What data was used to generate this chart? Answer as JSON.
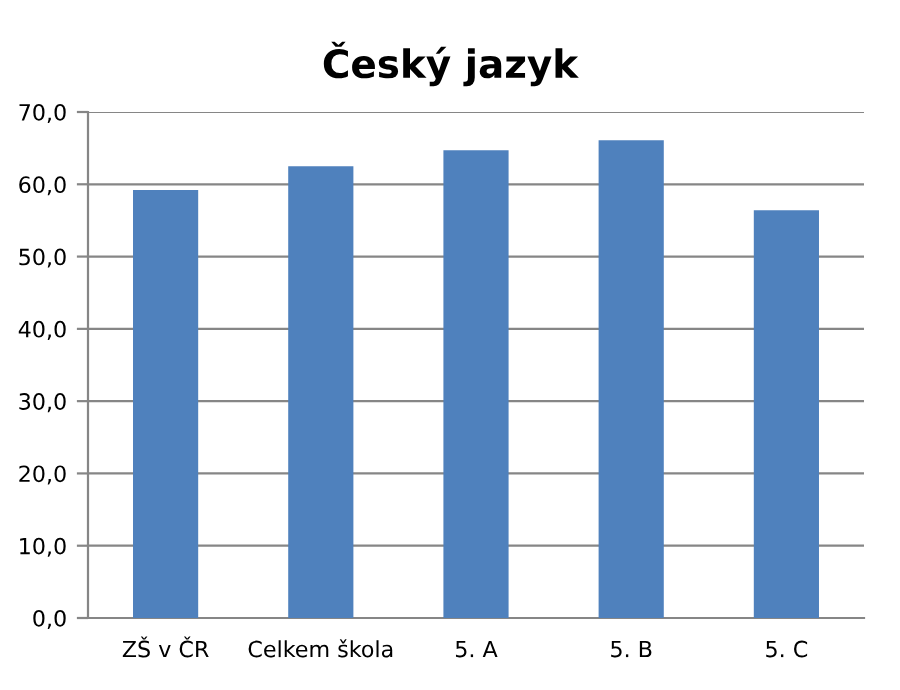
{
  "chart_data": {
    "type": "bar",
    "title": "Český jazyk",
    "categories": [
      "ZŠ v ČR",
      "Celkem škola",
      "5. A",
      "5. B",
      "5. C"
    ],
    "values": [
      59.2,
      62.5,
      64.7,
      66.1,
      56.4
    ],
    "color": "#4f81bd",
    "ylim": [
      0,
      70
    ],
    "yticks": [
      {
        "value": 0,
        "label": "0,0"
      },
      {
        "value": 10,
        "label": "10,0"
      },
      {
        "value": 20,
        "label": "20,0"
      },
      {
        "value": 30,
        "label": "30,0"
      },
      {
        "value": 40,
        "label": "40,0"
      },
      {
        "value": 50,
        "label": "50,0"
      },
      {
        "value": 60,
        "label": "60,0"
      },
      {
        "value": 70,
        "label": "70,0"
      }
    ],
    "grid": "y",
    "legend": false
  }
}
